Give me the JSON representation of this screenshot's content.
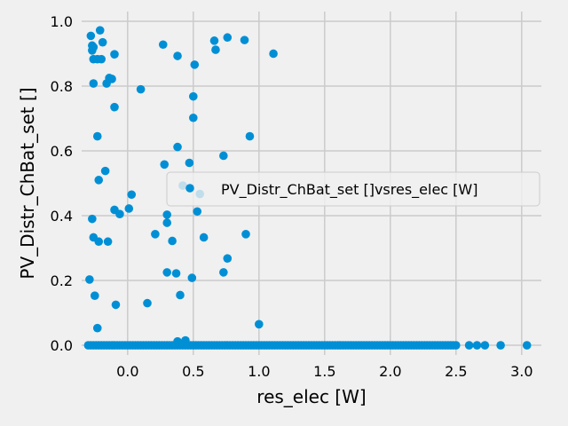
{
  "chart_data": {
    "type": "scatter",
    "xlabel": "res_elec [W]",
    "ylabel": "PV_Distr_ChBat_set []",
    "xlim": [
      -0.35,
      3.15
    ],
    "ylim": [
      -0.03,
      1.03
    ],
    "x_ticks": [
      0.0,
      0.5,
      1.0,
      1.5,
      2.0,
      2.5,
      3.0
    ],
    "x_tick_labels": [
      "0.0",
      "0.5",
      "1.0",
      "1.5",
      "2.0",
      "2.5",
      "3.0"
    ],
    "y_ticks": [
      0.0,
      0.2,
      0.4,
      0.6,
      0.8,
      1.0
    ],
    "y_tick_labels": [
      "0.0",
      "0.2",
      "0.4",
      "0.6",
      "0.8",
      "1.0"
    ],
    "grid": true,
    "legend_position": "center-right",
    "colors": {
      "marker": "#008fd5",
      "background": "#f0f0f0",
      "grid": "#cbcbcb"
    },
    "series": [
      {
        "name": "PV_Distr_ChBat_set []vsres_elec [W]",
        "points": [
          [
            -0.28,
            0.955
          ],
          [
            -0.21,
            0.972
          ],
          [
            -0.27,
            0.925
          ],
          [
            -0.27,
            0.91
          ],
          [
            -0.26,
            0.883
          ],
          [
            -0.23,
            0.883
          ],
          [
            -0.2,
            0.883
          ],
          [
            -0.26,
            0.92
          ],
          [
            -0.19,
            0.935
          ],
          [
            -0.1,
            0.898
          ],
          [
            -0.14,
            0.825
          ],
          [
            -0.12,
            0.822
          ],
          [
            -0.16,
            0.808
          ],
          [
            -0.26,
            0.808
          ],
          [
            -0.1,
            0.735
          ],
          [
            0.1,
            0.79
          ],
          [
            0.27,
            0.928
          ],
          [
            0.38,
            0.893
          ],
          [
            0.51,
            0.866
          ],
          [
            0.66,
            0.94
          ],
          [
            0.67,
            0.912
          ],
          [
            0.76,
            0.95
          ],
          [
            0.89,
            0.942
          ],
          [
            1.11,
            0.9
          ],
          [
            -0.23,
            0.645
          ],
          [
            0.5,
            0.768
          ],
          [
            0.5,
            0.702
          ],
          [
            0.93,
            0.645
          ],
          [
            0.38,
            0.612
          ],
          [
            0.73,
            0.585
          ],
          [
            0.28,
            0.558
          ],
          [
            0.47,
            0.563
          ],
          [
            -0.17,
            0.538
          ],
          [
            -0.22,
            0.51
          ],
          [
            0.42,
            0.493
          ],
          [
            0.03,
            0.465
          ],
          [
            0.55,
            0.467
          ],
          [
            -0.1,
            0.418
          ],
          [
            -0.06,
            0.405
          ],
          [
            0.01,
            0.422
          ],
          [
            0.3,
            0.403
          ],
          [
            0.53,
            0.413
          ],
          [
            -0.27,
            0.39
          ],
          [
            0.3,
            0.378
          ],
          [
            0.21,
            0.343
          ],
          [
            0.9,
            0.343
          ],
          [
            -0.26,
            0.333
          ],
          [
            -0.22,
            0.32
          ],
          [
            -0.15,
            0.32
          ],
          [
            0.34,
            0.322
          ],
          [
            0.58,
            0.333
          ],
          [
            0.76,
            0.268
          ],
          [
            0.3,
            0.225
          ],
          [
            0.37,
            0.222
          ],
          [
            0.49,
            0.208
          ],
          [
            0.73,
            0.225
          ],
          [
            -0.29,
            0.203
          ],
          [
            0.4,
            0.155
          ],
          [
            -0.25,
            0.153
          ],
          [
            0.15,
            0.13
          ],
          [
            -0.09,
            0.125
          ],
          [
            -0.23,
            0.053
          ],
          [
            1.0,
            0.065
          ],
          [
            0.38,
            0.012
          ],
          [
            0.44,
            0.015
          ],
          [
            2.6,
            0.0
          ],
          [
            2.66,
            0.0
          ],
          [
            2.72,
            0.0
          ],
          [
            2.84,
            0.0
          ],
          [
            3.04,
            0.0
          ]
        ],
        "cluster_at_zero_x_range": [
          -0.3,
          2.5
        ]
      }
    ]
  }
}
